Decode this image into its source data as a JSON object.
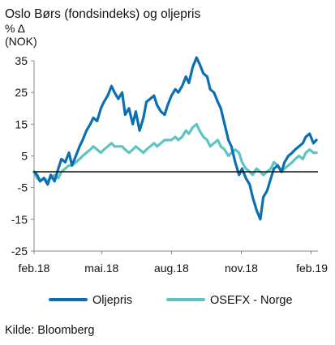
{
  "chart_data": {
    "type": "line",
    "title": "Oslo Børs (fondsindeks) og oljepris",
    "ylabel_line1": "% Δ",
    "ylabel_line2": "(NOK)",
    "xlabel": "",
    "source": "Kilde: Bloomberg",
    "ylim": [
      -25,
      35
    ],
    "yticks": [
      35,
      25,
      15,
      5,
      -5,
      -15,
      -25
    ],
    "x_range": [
      "2018-02-01",
      "2019-02-10"
    ],
    "xticks": [
      {
        "date": "2018-02-01",
        "label": "feb.18"
      },
      {
        "date": "2018-05-01",
        "label": "mai.18"
      },
      {
        "date": "2018-08-01",
        "label": "aug.18"
      },
      {
        "date": "2018-11-01",
        "label": "nov.18"
      },
      {
        "date": "2019-02-01",
        "label": "feb.19"
      }
    ],
    "zero_line": 0,
    "grid": false,
    "legend_position": "bottom",
    "colors": {
      "Oljepris": "#0b6fb0",
      "OSEFX - Norge": "#5ec4c3",
      "zero_line": "#000000",
      "axis": "#888888"
    },
    "series": [
      {
        "name": "Oljepris",
        "color": "#0b6fb0",
        "points": [
          [
            "2018-02-01",
            0
          ],
          [
            "2018-02-05",
            -1
          ],
          [
            "2018-02-09",
            -3
          ],
          [
            "2018-02-14",
            -2
          ],
          [
            "2018-02-19",
            -4
          ],
          [
            "2018-02-23",
            -1
          ],
          [
            "2018-02-28",
            -3
          ],
          [
            "2018-03-05",
            1
          ],
          [
            "2018-03-09",
            4
          ],
          [
            "2018-03-14",
            3
          ],
          [
            "2018-03-19",
            6
          ],
          [
            "2018-03-23",
            2
          ],
          [
            "2018-03-28",
            5
          ],
          [
            "2018-04-02",
            8
          ],
          [
            "2018-04-06",
            10
          ],
          [
            "2018-04-11",
            13
          ],
          [
            "2018-04-16",
            15
          ],
          [
            "2018-04-20",
            17
          ],
          [
            "2018-04-25",
            16
          ],
          [
            "2018-04-30",
            20
          ],
          [
            "2018-05-04",
            22
          ],
          [
            "2018-05-09",
            24
          ],
          [
            "2018-05-14",
            27
          ],
          [
            "2018-05-18",
            25
          ],
          [
            "2018-05-23",
            23
          ],
          [
            "2018-05-28",
            25
          ],
          [
            "2018-06-01",
            18
          ],
          [
            "2018-06-06",
            20
          ],
          [
            "2018-06-11",
            15
          ],
          [
            "2018-06-15",
            19
          ],
          [
            "2018-06-20",
            13
          ],
          [
            "2018-06-25",
            17
          ],
          [
            "2018-06-29",
            22
          ],
          [
            "2018-07-04",
            23
          ],
          [
            "2018-07-09",
            24
          ],
          [
            "2018-07-13",
            21
          ],
          [
            "2018-07-18",
            19
          ],
          [
            "2018-07-23",
            18
          ],
          [
            "2018-07-27",
            21
          ],
          [
            "2018-08-01",
            24
          ],
          [
            "2018-08-06",
            26
          ],
          [
            "2018-08-10",
            25
          ],
          [
            "2018-08-15",
            27
          ],
          [
            "2018-08-20",
            30
          ],
          [
            "2018-08-24",
            28
          ],
          [
            "2018-08-29",
            33
          ],
          [
            "2018-09-03",
            36
          ],
          [
            "2018-09-07",
            34
          ],
          [
            "2018-09-12",
            31
          ],
          [
            "2018-09-17",
            30
          ],
          [
            "2018-09-21",
            26
          ],
          [
            "2018-09-26",
            25
          ],
          [
            "2018-10-01",
            22
          ],
          [
            "2018-10-05",
            20
          ],
          [
            "2018-10-10",
            15
          ],
          [
            "2018-10-15",
            10
          ],
          [
            "2018-10-19",
            8
          ],
          [
            "2018-10-24",
            3
          ],
          [
            "2018-10-29",
            -1
          ],
          [
            "2018-11-02",
            1
          ],
          [
            "2018-11-07",
            -2
          ],
          [
            "2018-11-12",
            -4
          ],
          [
            "2018-11-16",
            -8
          ],
          [
            "2018-11-21",
            -12
          ],
          [
            "2018-11-26",
            -15
          ],
          [
            "2018-11-30",
            -8
          ],
          [
            "2018-12-05",
            -6
          ],
          [
            "2018-12-10",
            -2
          ],
          [
            "2018-12-14",
            1
          ],
          [
            "2018-12-19",
            2
          ],
          [
            "2018-12-24",
            0
          ],
          [
            "2018-12-28",
            3
          ],
          [
            "2019-01-02",
            5
          ],
          [
            "2019-01-07",
            6
          ],
          [
            "2019-01-11",
            7
          ],
          [
            "2019-01-16",
            8
          ],
          [
            "2019-01-21",
            9
          ],
          [
            "2019-01-25",
            11
          ],
          [
            "2019-01-30",
            12
          ],
          [
            "2019-02-04",
            9
          ],
          [
            "2019-02-08",
            10
          ]
        ]
      },
      {
        "name": "OSEFX - Norge",
        "color": "#5ec4c3",
        "points": [
          [
            "2018-02-01",
            0
          ],
          [
            "2018-02-05",
            -2
          ],
          [
            "2018-02-09",
            -3
          ],
          [
            "2018-02-14",
            -2
          ],
          [
            "2018-02-19",
            -3
          ],
          [
            "2018-02-23",
            -2
          ],
          [
            "2018-02-28",
            -1
          ],
          [
            "2018-03-05",
            -2
          ],
          [
            "2018-03-09",
            0
          ],
          [
            "2018-03-14",
            1
          ],
          [
            "2018-03-19",
            2
          ],
          [
            "2018-03-23",
            2
          ],
          [
            "2018-03-28",
            3
          ],
          [
            "2018-04-02",
            4
          ],
          [
            "2018-04-06",
            5
          ],
          [
            "2018-04-11",
            6
          ],
          [
            "2018-04-16",
            7
          ],
          [
            "2018-04-20",
            8
          ],
          [
            "2018-04-25",
            7
          ],
          [
            "2018-04-30",
            6
          ],
          [
            "2018-05-04",
            7
          ],
          [
            "2018-05-09",
            8
          ],
          [
            "2018-05-14",
            9
          ],
          [
            "2018-05-18",
            8
          ],
          [
            "2018-05-23",
            8
          ],
          [
            "2018-05-28",
            8
          ],
          [
            "2018-06-01",
            7
          ],
          [
            "2018-06-06",
            6
          ],
          [
            "2018-06-11",
            7
          ],
          [
            "2018-06-15",
            8
          ],
          [
            "2018-06-20",
            7
          ],
          [
            "2018-06-25",
            6
          ],
          [
            "2018-06-29",
            7
          ],
          [
            "2018-07-04",
            8
          ],
          [
            "2018-07-09",
            9
          ],
          [
            "2018-07-13",
            8
          ],
          [
            "2018-07-18",
            9
          ],
          [
            "2018-07-23",
            10
          ],
          [
            "2018-07-27",
            10
          ],
          [
            "2018-08-01",
            10
          ],
          [
            "2018-08-06",
            11
          ],
          [
            "2018-08-10",
            10
          ],
          [
            "2018-08-15",
            11
          ],
          [
            "2018-08-20",
            13
          ],
          [
            "2018-08-24",
            12
          ],
          [
            "2018-08-29",
            14
          ],
          [
            "2018-09-03",
            15
          ],
          [
            "2018-09-07",
            13
          ],
          [
            "2018-09-12",
            11
          ],
          [
            "2018-09-17",
            10
          ],
          [
            "2018-09-21",
            8
          ],
          [
            "2018-09-26",
            9
          ],
          [
            "2018-10-01",
            10
          ],
          [
            "2018-10-05",
            8
          ],
          [
            "2018-10-10",
            7
          ],
          [
            "2018-10-15",
            5
          ],
          [
            "2018-10-19",
            6
          ],
          [
            "2018-10-24",
            7
          ],
          [
            "2018-10-29",
            6
          ],
          [
            "2018-11-02",
            3
          ],
          [
            "2018-11-07",
            1
          ],
          [
            "2018-11-12",
            0
          ],
          [
            "2018-11-16",
            -1
          ],
          [
            "2018-11-21",
            1
          ],
          [
            "2018-11-26",
            0
          ],
          [
            "2018-11-30",
            -1
          ],
          [
            "2018-12-05",
            0
          ],
          [
            "2018-12-10",
            1
          ],
          [
            "2018-12-14",
            3
          ],
          [
            "2018-12-19",
            2
          ],
          [
            "2018-12-24",
            0
          ],
          [
            "2018-12-28",
            1
          ],
          [
            "2019-01-02",
            2
          ],
          [
            "2019-01-07",
            3
          ],
          [
            "2019-01-11",
            4
          ],
          [
            "2019-01-16",
            5
          ],
          [
            "2019-01-21",
            4
          ],
          [
            "2019-01-25",
            6
          ],
          [
            "2019-01-30",
            7
          ],
          [
            "2019-02-04",
            6
          ],
          [
            "2019-02-08",
            6
          ]
        ]
      }
    ]
  }
}
